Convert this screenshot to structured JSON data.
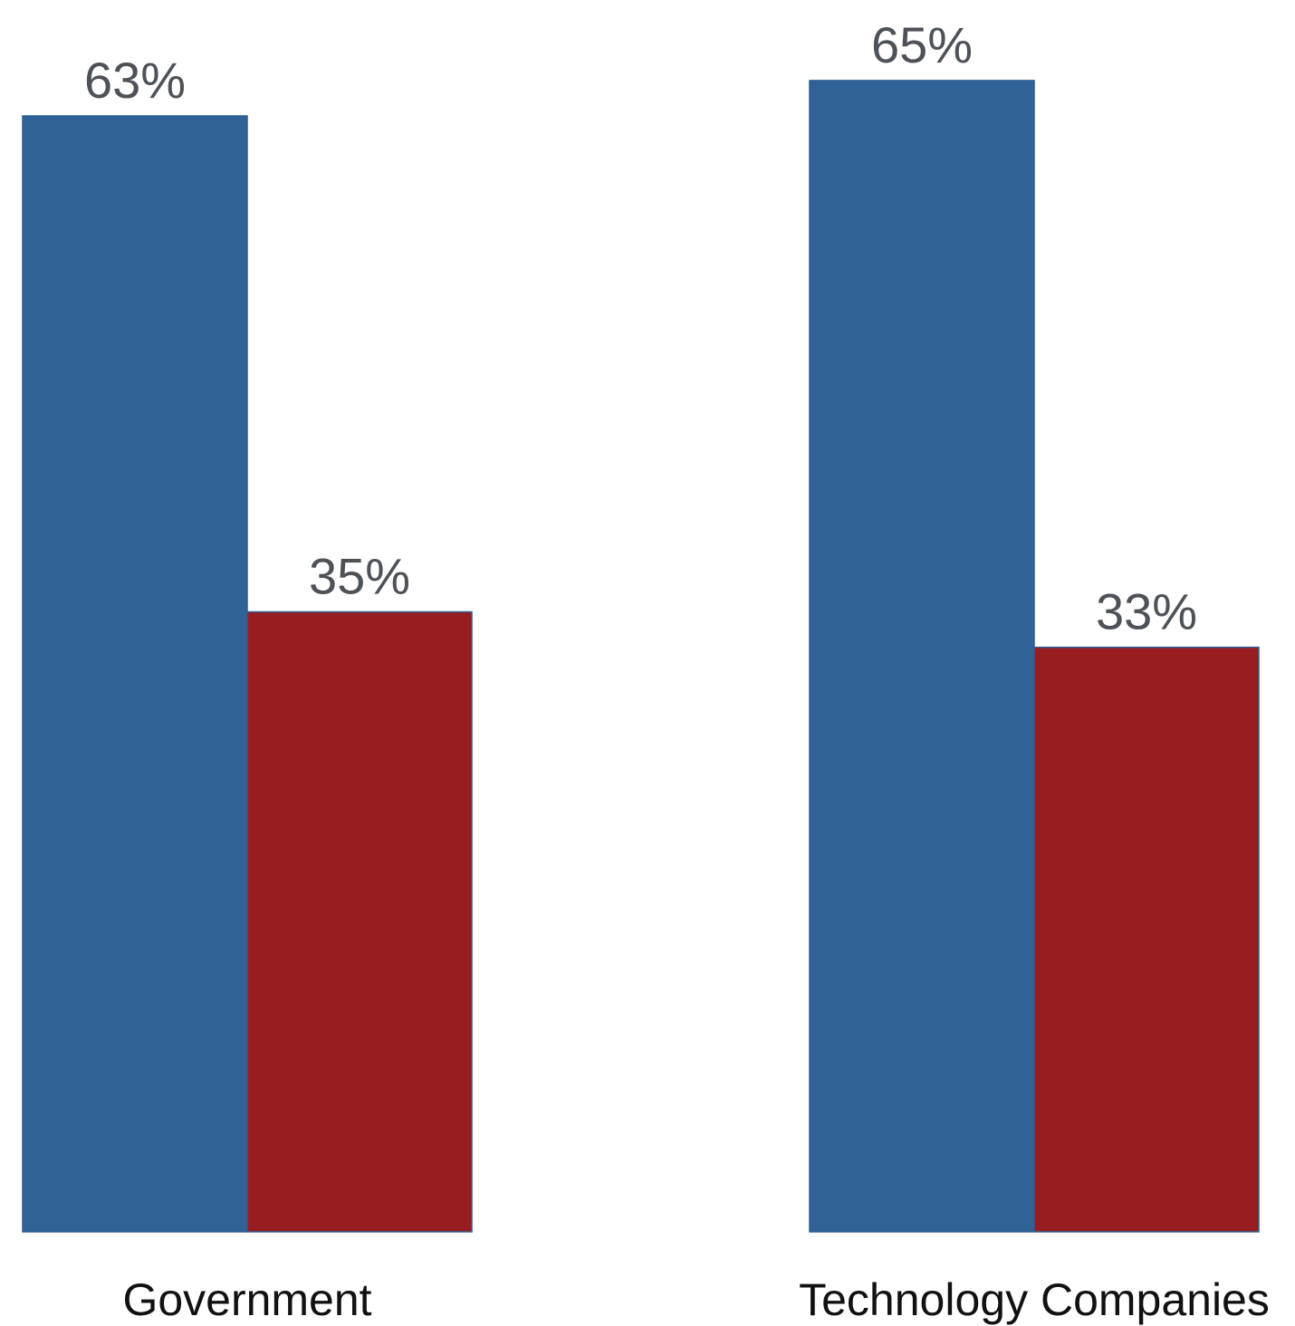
{
  "chart_data": {
    "type": "bar",
    "categories": [
      "Government",
      "Technology Companies"
    ],
    "series": [
      {
        "values": [
          63,
          65
        ],
        "color": "#316297"
      },
      {
        "values": [
          35,
          33
        ],
        "color": "#981d21"
      }
    ],
    "value_labels": [
      [
        "63%",
        "65%"
      ],
      [
        "35%",
        "33%"
      ]
    ],
    "ylim": [
      0,
      100
    ],
    "grid": false,
    "legend": "none"
  }
}
